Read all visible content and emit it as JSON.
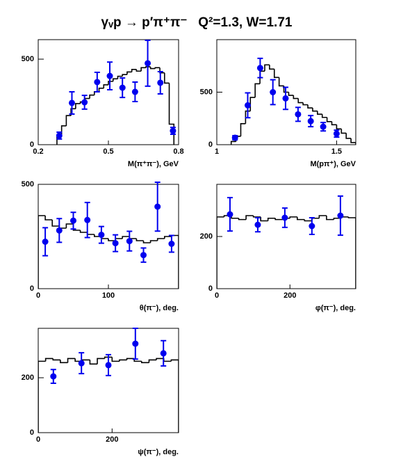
{
  "title": "γᵥp → p′π⁺π⁻   Q²=1.3, W=1.71",
  "chart_data": [
    {
      "type": "errorbar",
      "xlabel": "M(π⁺π⁻), GeV",
      "xlim": [
        0.2,
        0.8
      ],
      "ylim": [
        0,
        614
      ],
      "xticks": [
        0.2,
        0.5,
        0.8
      ],
      "yticks": [
        0,
        500
      ],
      "points": {
        "color": "#0000ee",
        "x": [
          0.29,
          0.344,
          0.398,
          0.452,
          0.506,
          0.56,
          0.614,
          0.668,
          0.722,
          0.776
        ],
        "values": [
          53,
          244,
          248,
          366,
          402,
          333,
          309,
          476,
          362,
          81
        ],
        "errors": [
          20,
          65,
          40,
          57,
          81,
          57,
          57,
          134,
          65,
          20
        ]
      },
      "histogram": {
        "color": "#000000",
        "bins": [
          0.28,
          0.3,
          0.32,
          0.34,
          0.36,
          0.38,
          0.4,
          0.42,
          0.44,
          0.46,
          0.48,
          0.5,
          0.52,
          0.54,
          0.56,
          0.58,
          0.6,
          0.62,
          0.64,
          0.66,
          0.68,
          0.7,
          0.72,
          0.74,
          0.76,
          0.78
        ],
        "counts": [
          50,
          110,
          170,
          210,
          240,
          250,
          270,
          290,
          310,
          330,
          350,
          370,
          385,
          400,
          410,
          425,
          440,
          430,
          450,
          455,
          445,
          450,
          420,
          360,
          120
        ]
      }
    },
    {
      "type": "errorbar",
      "xlabel": "M(pπ⁺), GeV",
      "xlim": [
        1.0,
        1.58
      ],
      "ylim": [
        0,
        1000
      ],
      "xticks": [
        1,
        1.5
      ],
      "yticks": [
        0,
        500
      ],
      "points": {
        "color": "#0000ee",
        "x": [
          1.076,
          1.129,
          1.181,
          1.234,
          1.287,
          1.339,
          1.392,
          1.444,
          1.5
        ],
        "values": [
          66,
          375,
          730,
          500,
          441,
          289,
          224,
          171,
          105
        ],
        "errors": [
          20,
          118,
          92,
          118,
          105,
          66,
          53,
          40,
          33
        ]
      },
      "histogram": {
        "color": "#000000",
        "bins": [
          1.06,
          1.08,
          1.1,
          1.12,
          1.14,
          1.16,
          1.18,
          1.2,
          1.22,
          1.24,
          1.26,
          1.28,
          1.3,
          1.32,
          1.34,
          1.36,
          1.38,
          1.4,
          1.42,
          1.44,
          1.46,
          1.48,
          1.5,
          1.52,
          1.54,
          1.56,
          1.58
        ],
        "counts": [
          30,
          80,
          200,
          320,
          450,
          580,
          700,
          760,
          720,
          640,
          560,
          500,
          470,
          440,
          400,
          380,
          350,
          320,
          290,
          260,
          220,
          190,
          150,
          110,
          60,
          20
        ]
      }
    },
    {
      "type": "errorbar",
      "xlabel": "θ(π⁻), deg.",
      "xlim": [
        0,
        200
      ],
      "ylim": [
        0,
        500
      ],
      "xticks": [
        0,
        100
      ],
      "yticks": [
        0,
        500
      ],
      "points": {
        "color": "#0000ee",
        "x": [
          10,
          30,
          50,
          70,
          90,
          110,
          130,
          150,
          170,
          190
        ],
        "values": [
          225,
          279,
          326,
          329,
          258,
          218,
          228,
          161,
          393,
          215
        ],
        "errors": [
          67,
          57,
          40,
          84,
          40,
          40,
          47,
          34,
          117,
          40
        ]
      },
      "histogram": {
        "color": "#000000",
        "bins": [
          0,
          10,
          20,
          30,
          40,
          50,
          60,
          70,
          80,
          90,
          100,
          110,
          120,
          130,
          140,
          150,
          160,
          170,
          180,
          190,
          200
        ],
        "counts": [
          350,
          330,
          300,
          290,
          310,
          280,
          270,
          260,
          250,
          240,
          230,
          240,
          250,
          240,
          230,
          220,
          230,
          240,
          250,
          255
        ]
      }
    },
    {
      "type": "errorbar",
      "xlabel": "φ(π⁻), deg.",
      "xlim": [
        0,
        380
      ],
      "ylim": [
        0,
        400
      ],
      "xticks": [
        0,
        200
      ],
      "yticks": [
        0,
        200
      ],
      "points": {
        "color": "#0000ee",
        "x": [
          36,
          112,
          186,
          260,
          338
        ],
        "values": [
          285,
          245,
          272,
          240,
          280
        ],
        "errors": [
          64,
          27,
          37,
          32,
          75
        ]
      },
      "histogram": {
        "color": "#000000",
        "bins": [
          0,
          20,
          40,
          60,
          80,
          100,
          120,
          140,
          160,
          180,
          200,
          220,
          240,
          260,
          280,
          300,
          320,
          340,
          360,
          380
        ],
        "counts": [
          275,
          280,
          270,
          265,
          280,
          275,
          260,
          270,
          265,
          270,
          275,
          265,
          260,
          270,
          280,
          265,
          270,
          275,
          272
        ]
      }
    },
    {
      "type": "errorbar",
      "xlabel": "ψ(π⁻), deg.",
      "xlim": [
        0,
        380
      ],
      "ylim": [
        0,
        380
      ],
      "xticks": [
        0,
        200
      ],
      "yticks": [
        0,
        200
      ],
      "points": {
        "color": "#0000ee",
        "x": [
          41,
          117,
          190,
          263,
          339
        ],
        "values": [
          205,
          253,
          246,
          324,
          289
        ],
        "errors": [
          25,
          38,
          38,
          56,
          46
        ]
      },
      "histogram": {
        "color": "#000000",
        "bins": [
          0,
          20,
          40,
          60,
          80,
          100,
          120,
          140,
          160,
          180,
          200,
          220,
          240,
          260,
          280,
          300,
          320,
          340,
          360,
          380
        ],
        "counts": [
          260,
          270,
          265,
          255,
          270,
          260,
          265,
          250,
          270,
          275,
          260,
          265,
          270,
          260,
          255,
          265,
          270,
          260,
          265
        ]
      }
    }
  ]
}
